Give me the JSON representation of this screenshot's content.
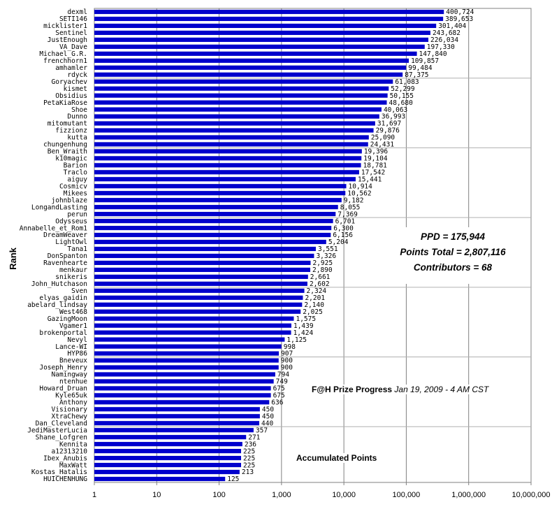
{
  "chart_data": {
    "type": "bar",
    "orientation": "horizontal",
    "scale": "log",
    "xlim": [
      1,
      10000000
    ],
    "xticks": [
      1,
      10,
      100,
      1000,
      10000,
      100000,
      1000000,
      10000000
    ],
    "xtick_labels": [
      "1",
      "10",
      "100",
      "1,000",
      "10,000",
      "100,000",
      "1,000,000",
      "10,000,000"
    ],
    "ylabel": "Rank",
    "xlabel": "Accumulated Points",
    "bar_color": "#0000cc",
    "grid": "vertical",
    "categories": [
      "dexml",
      "SETI146",
      "micklister1",
      "Sentinel",
      "JustEnough",
      "VA_Dave",
      "Michael_G.R.",
      "frenchhorn1",
      "amhamler",
      "rdyck",
      "Goryachev",
      "kismet",
      "Obsidius",
      "PetaKiaRose",
      "Shoe",
      "Dunno",
      "mitomutant",
      "fizzionz",
      "kutta",
      "chungenhung",
      "Ben_Wraith",
      "k10magic",
      "Barion",
      "Traclo",
      "aiguy",
      "Cosmicv",
      "Mikees",
      "johnblaze",
      "LongandLasting",
      "perun",
      "Odysseus",
      "Annabelle_et_Rom1",
      "DreamWeaver",
      "LightOwl",
      "Tana1",
      "DonSpanton",
      "Ravenhearte",
      "menkaur",
      "snikeris",
      "John_Hutchason",
      "Sven",
      "elyas_gaidin",
      "abelard_lindsay",
      "West468",
      "GazingMoon",
      "Vgamer1",
      "brokenportal",
      "Nevyl",
      "Lance-WI",
      "HYP86",
      "Bneveux",
      "Joseph_Henry",
      "Namingway",
      "ntenhue",
      "Howard_Druan",
      "Kyle65uk",
      "Anthony",
      "Visionary",
      "XtraChewy",
      "Dan_Cleveland",
      "JediMasterLucia",
      "Shane_Lofgren",
      "Kennita",
      "a12313210",
      "Ibex_Anubis",
      "MaxWatt",
      "Kostas_Hatalis",
      "HUICHENHUNG"
    ],
    "values": [
      400724,
      389653,
      301404,
      243682,
      226034,
      197330,
      147840,
      109857,
      99484,
      87375,
      61083,
      52299,
      50155,
      48680,
      40063,
      36993,
      31697,
      29876,
      25090,
      24431,
      19396,
      19104,
      18781,
      17542,
      15441,
      10914,
      10562,
      9182,
      8055,
      7369,
      6701,
      6300,
      6156,
      5204,
      3551,
      3326,
      2925,
      2890,
      2661,
      2602,
      2324,
      2201,
      2140,
      2025,
      1575,
      1439,
      1424,
      1125,
      998,
      907,
      900,
      900,
      794,
      749,
      675,
      675,
      636,
      450,
      450,
      440,
      357,
      271,
      236,
      225,
      225,
      225,
      213,
      125
    ],
    "value_labels": [
      "400,724",
      "389,653",
      "301,404",
      "243,682",
      "226,034",
      "197,330",
      "147,840",
      "109,857",
      "99,484",
      "87,375",
      "61,083",
      "52,299",
      "50,155",
      "48,680",
      "40,063",
      "36,993",
      "31,697",
      "29,876",
      "25,090",
      "24,431",
      "19,396",
      "19,104",
      "18,781",
      "17,542",
      "15,441",
      "10,914",
      "10,562",
      "9,182",
      "8,055",
      "7,369",
      "6,701",
      "6,300",
      "6,156",
      "5,204",
      "3,551",
      "3,326",
      "2,925",
      "2,890",
      "2,661",
      "2,602",
      "2,324",
      "2,201",
      "2,140",
      "2,025",
      "1,575",
      "1,439",
      "1,424",
      "1,125",
      "998",
      "907",
      "900",
      "900",
      "794",
      "749",
      "675",
      "675",
      "636",
      "450",
      "450",
      "440",
      "357",
      "271",
      "236",
      "225",
      "225",
      "225",
      "213",
      "125"
    ]
  },
  "annotations": {
    "ppd": "PPD = 175,944",
    "points_total": "Points Total = 2,807,116",
    "contributors": "Contributors = 68",
    "progress_title": "F@H Prize Progress",
    "progress_date": "Jan 19, 2009 - 4 AM CST",
    "accumulated": "Accumulated Points"
  }
}
